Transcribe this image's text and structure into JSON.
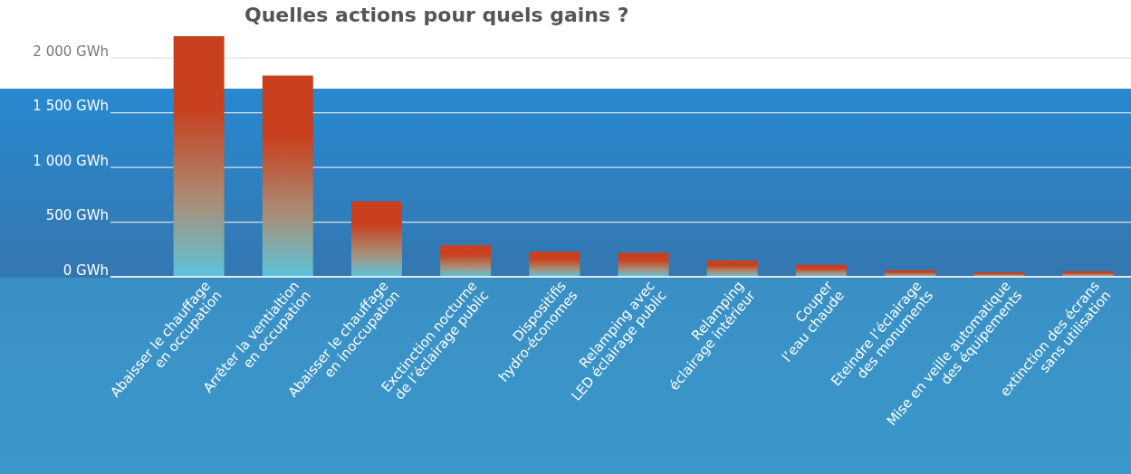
{
  "chart_data": {
    "type": "bar",
    "title": "Quelles actions pour quels gains ?",
    "categories": [
      "Abaisser le chauffage\nen occupation",
      "Arrêter la ventialtion\nen occupation",
      "Abaisser le chauffage\nen inoccupation",
      "Exctinction nocturne\nde l’éclairage public",
      "Dispositifis\nhydro-économes",
      "Relamping avec\nLED éclairage public",
      "Relamping\néclairage intérieur",
      "Couper\nl’eau chaude",
      "Eteindre l’éclairage\ndes monuments",
      "Mise en veille automatique\ndes équipements",
      "extinction des écrans\nsans utilisation"
    ],
    "values": [
      2200,
      1840,
      690,
      290,
      230,
      220,
      150,
      110,
      60,
      40,
      50
    ],
    "color": "#c8401e",
    "ylim": [
      0,
      2200
    ],
    "yticks": [
      {
        "value": 0,
        "label": "0 GWh"
      },
      {
        "value": 500,
        "label": "500 GWh"
      },
      {
        "value": 1000,
        "label": "1 000 GWh"
      },
      {
        "value": 1500,
        "label": "1 500 GWh"
      },
      {
        "value": 2000,
        "label": "2 000 GWh"
      }
    ],
    "grid": "y"
  }
}
